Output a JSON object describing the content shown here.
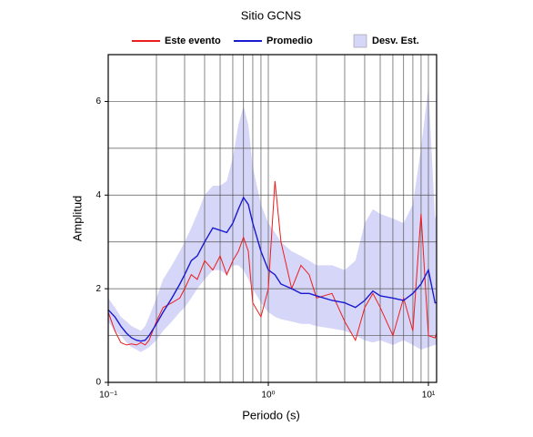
{
  "chart_data": {
    "type": "line",
    "title": "Sitio GCNS",
    "x_label": "Periodo (s)",
    "y_label": "Amplitud",
    "log_x": true,
    "xlim": [
      0.1,
      11.25
    ],
    "ylim": [
      0,
      7
    ],
    "xticks": [
      {
        "value": 0.1,
        "label": "10⁻¹"
      },
      {
        "value": 1,
        "label": "10⁰"
      },
      {
        "value": 10,
        "label": "10¹"
      }
    ],
    "yticks": [
      0,
      2,
      4,
      6
    ],
    "xgrid": [
      0.2,
      0.3,
      0.4,
      0.5,
      0.6,
      0.7,
      0.8,
      0.9,
      1,
      2,
      3,
      4,
      5,
      6,
      7,
      8,
      9,
      10
    ],
    "ygrid": [
      1,
      2,
      3,
      4,
      5,
      6
    ],
    "grid": true,
    "legend": "top",
    "x": [
      0.1,
      0.11,
      0.12,
      0.13,
      0.14,
      0.15,
      0.16,
      0.17,
      0.18,
      0.2,
      0.22,
      0.25,
      0.28,
      0.3,
      0.33,
      0.36,
      0.4,
      0.45,
      0.5,
      0.55,
      0.6,
      0.65,
      0.7,
      0.75,
      0.8,
      0.9,
      1.0,
      1.1,
      1.2,
      1.4,
      1.6,
      1.8,
      2,
      2.5,
      3,
      3.5,
      4,
      4.5,
      5,
      6,
      7,
      8,
      9,
      10,
      11,
      11.25
    ],
    "series": [
      {
        "name": "Este evento",
        "color": "#ee1c1c",
        "values": [
          1.5,
          1.1,
          0.85,
          0.8,
          0.82,
          0.8,
          0.85,
          0.8,
          0.9,
          1.3,
          1.6,
          1.7,
          1.8,
          2.0,
          2.3,
          2.2,
          2.6,
          2.4,
          2.7,
          2.3,
          2.6,
          2.8,
          3.1,
          2.8,
          1.7,
          1.4,
          2.0,
          4.3,
          3.0,
          2.0,
          2.5,
          2.3,
          1.8,
          1.9,
          1.3,
          0.9,
          1.6,
          1.9,
          1.6,
          1.0,
          1.8,
          1.1,
          3.6,
          1.0,
          0.95,
          1.05
        ]
      },
      {
        "name": "Promedio",
        "color": "#1a1ad0",
        "values": [
          1.55,
          1.4,
          1.2,
          1.05,
          0.95,
          0.9,
          0.88,
          0.9,
          1.0,
          1.25,
          1.5,
          1.8,
          2.1,
          2.3,
          2.6,
          2.7,
          3.0,
          3.3,
          3.25,
          3.2,
          3.4,
          3.7,
          3.95,
          3.8,
          3.4,
          2.8,
          2.4,
          2.3,
          2.1,
          2.0,
          1.9,
          1.9,
          1.85,
          1.75,
          1.7,
          1.6,
          1.75,
          1.95,
          1.85,
          1.8,
          1.75,
          1.9,
          2.1,
          2.4,
          1.7,
          1.7
        ]
      },
      {
        "name": "Desv. Est.",
        "color": "#d6d6f8",
        "upper": [
          1.8,
          1.6,
          1.4,
          1.3,
          1.2,
          1.15,
          1.1,
          1.2,
          1.4,
          1.8,
          2.2,
          2.5,
          2.8,
          3.0,
          3.3,
          3.6,
          4.0,
          4.2,
          4.2,
          4.3,
          4.8,
          5.5,
          5.9,
          5.5,
          4.6,
          3.8,
          3.4,
          3.2,
          3.0,
          2.8,
          2.7,
          2.6,
          2.5,
          2.5,
          2.4,
          2.6,
          3.4,
          3.7,
          3.6,
          3.5,
          3.4,
          3.8,
          5.0,
          6.3,
          3.5,
          3.6
        ],
        "lower": [
          1.3,
          1.1,
          1.0,
          0.85,
          0.75,
          0.7,
          0.65,
          0.7,
          0.75,
          0.9,
          1.1,
          1.3,
          1.5,
          1.6,
          1.8,
          2.0,
          2.2,
          2.4,
          2.4,
          2.3,
          2.5,
          2.5,
          2.4,
          2.2,
          2.0,
          1.7,
          1.5,
          1.4,
          1.35,
          1.3,
          1.25,
          1.25,
          1.2,
          1.15,
          1.1,
          1.0,
          0.9,
          0.85,
          0.9,
          0.8,
          0.9,
          0.8,
          0.7,
          0.75,
          0.8,
          0.8
        ]
      }
    ]
  }
}
